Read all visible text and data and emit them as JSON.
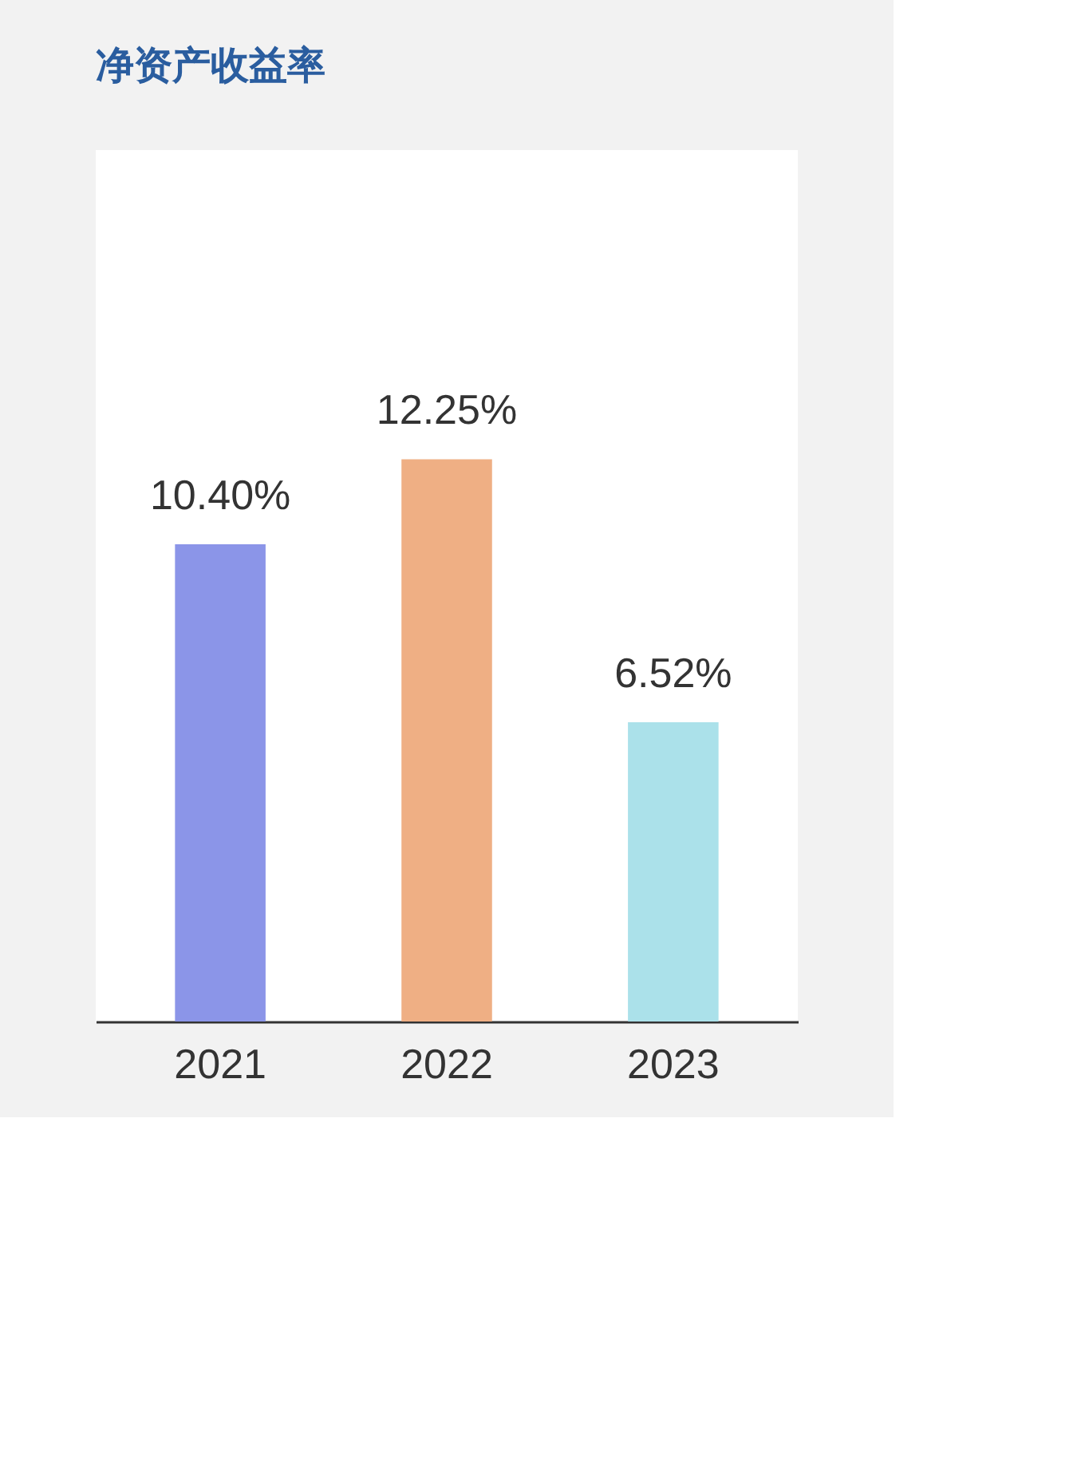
{
  "chart_data": {
    "type": "bar",
    "title": "净资产收益率",
    "categories": [
      "2021",
      "2022",
      "2023"
    ],
    "values": [
      10.4,
      12.25,
      6.52
    ],
    "colors": [
      "#8b95e8",
      "#efaf84",
      "#abe1ea"
    ],
    "value_labels": [
      "10.40%",
      "12.25%",
      "6.52%"
    ],
    "grid": false,
    "legend": false
  }
}
